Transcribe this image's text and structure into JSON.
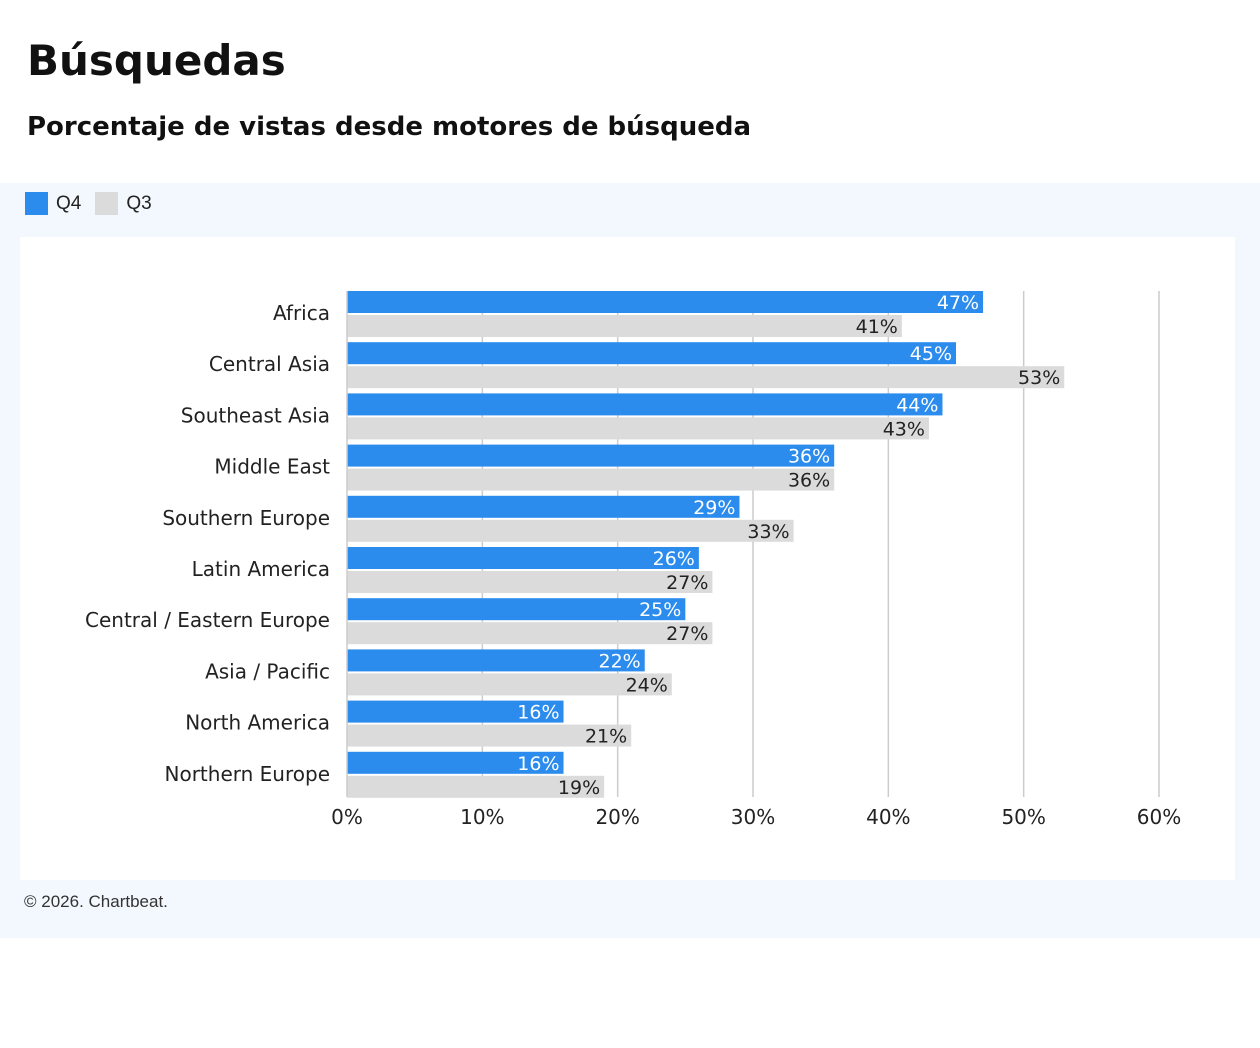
{
  "title": "Búsquedas",
  "subtitle": "Porcentaje de vistas desde motores de  búsqueda",
  "footer": "© 2026. Chartbeat.",
  "chart_data": {
    "type": "bar",
    "orientation": "horizontal",
    "categories": [
      "Africa",
      "Central Asia",
      "Southeast Asia",
      "Middle East",
      "Southern Europe",
      "Latin America",
      "Central / Eastern Europe",
      "Asia / Pacific",
      "North America",
      "Northern Europe"
    ],
    "series": [
      {
        "name": "Q4",
        "color": "#2b8ced",
        "values": [
          47,
          45,
          44,
          36,
          29,
          26,
          25,
          22,
          16,
          16
        ]
      },
      {
        "name": "Q3",
        "color": "#dbdbdb",
        "values": [
          41,
          53,
          43,
          36,
          33,
          27,
          27,
          24,
          21,
          19
        ]
      }
    ],
    "xlim": [
      0,
      60
    ],
    "xticks": [
      "0%",
      "10%",
      "20%",
      "30%",
      "40%",
      "50%",
      "60%"
    ],
    "grid": "vertical",
    "legend": "top-left",
    "value_suffix": "%"
  }
}
